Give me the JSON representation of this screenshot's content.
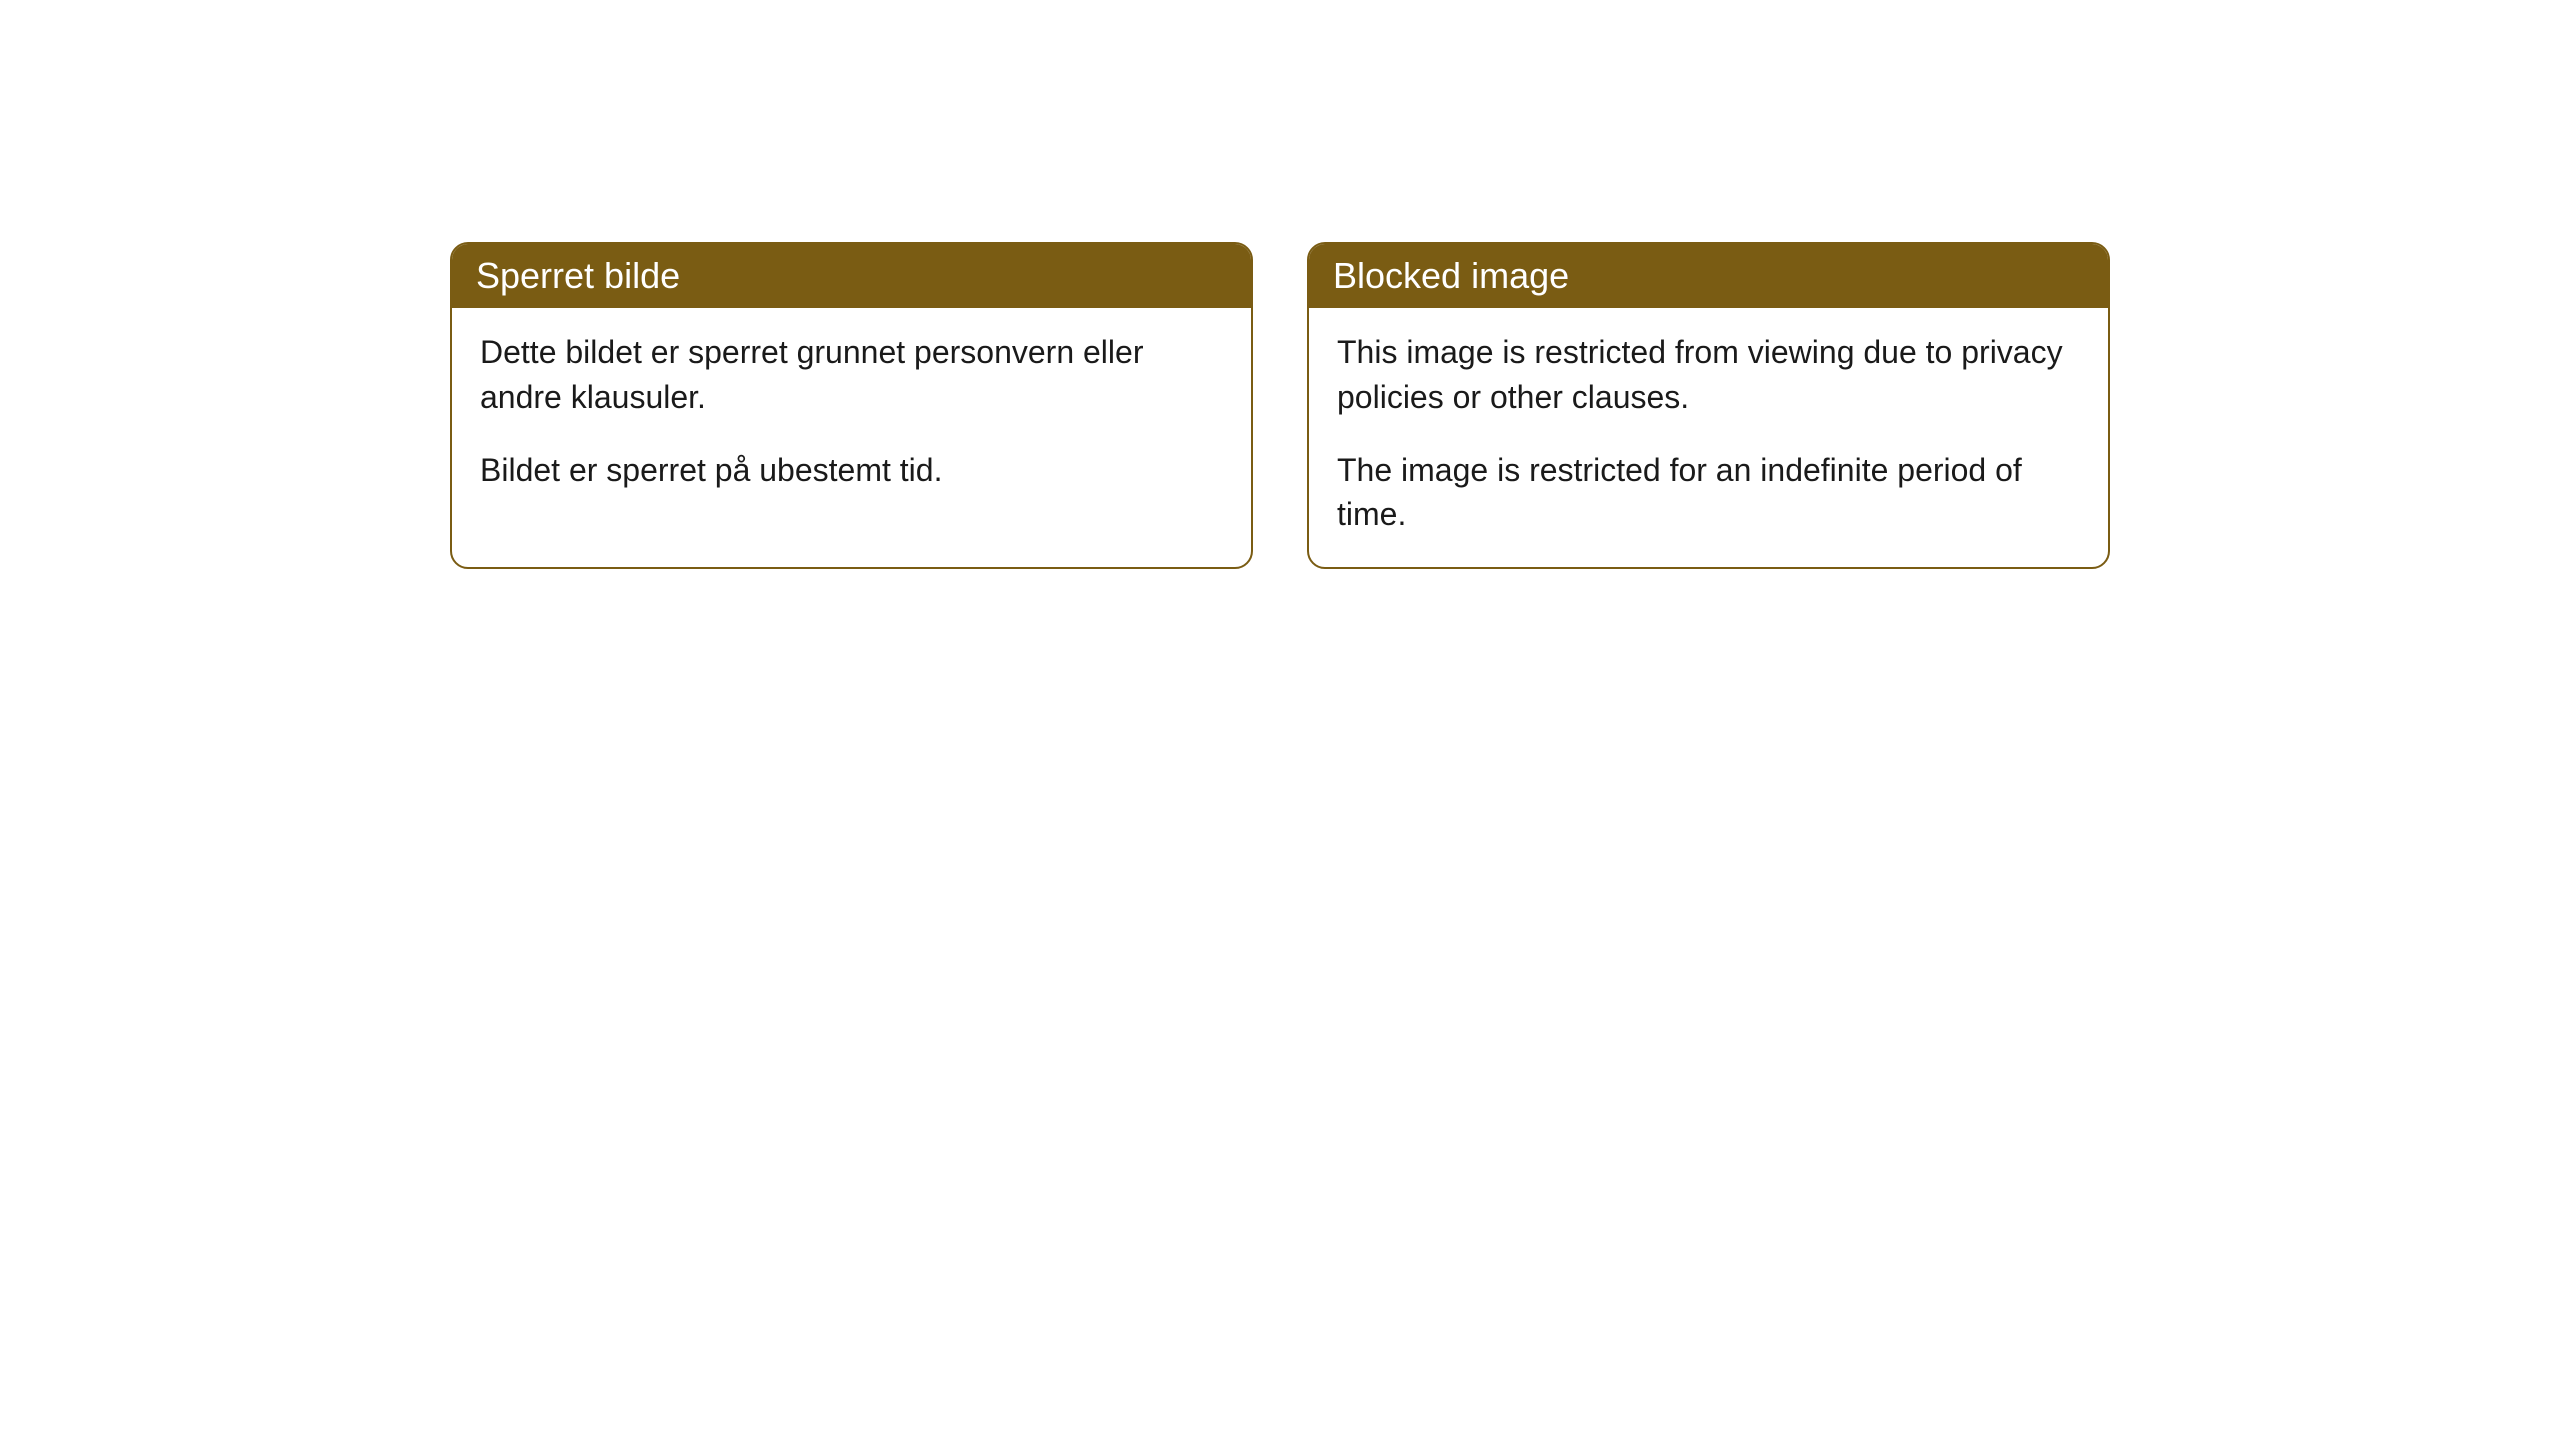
{
  "cards": [
    {
      "title": "Sperret bilde",
      "paragraph1": "Dette bildet er sperret grunnet personvern eller andre klausuler.",
      "paragraph2": "Bildet er sperret på ubestemt tid."
    },
    {
      "title": "Blocked image",
      "paragraph1": "This image is restricted from viewing due to privacy policies or other clauses.",
      "paragraph2": "The image is restricted for an indefinite period of time."
    }
  ],
  "style": {
    "header_bg_color": "#7a5c13",
    "header_text_color": "#ffffff",
    "border_color": "#7a5c13",
    "body_bg_color": "#ffffff",
    "body_text_color": "#1a1a1a",
    "border_radius": 18,
    "header_fontsize": 36,
    "body_fontsize": 32
  }
}
